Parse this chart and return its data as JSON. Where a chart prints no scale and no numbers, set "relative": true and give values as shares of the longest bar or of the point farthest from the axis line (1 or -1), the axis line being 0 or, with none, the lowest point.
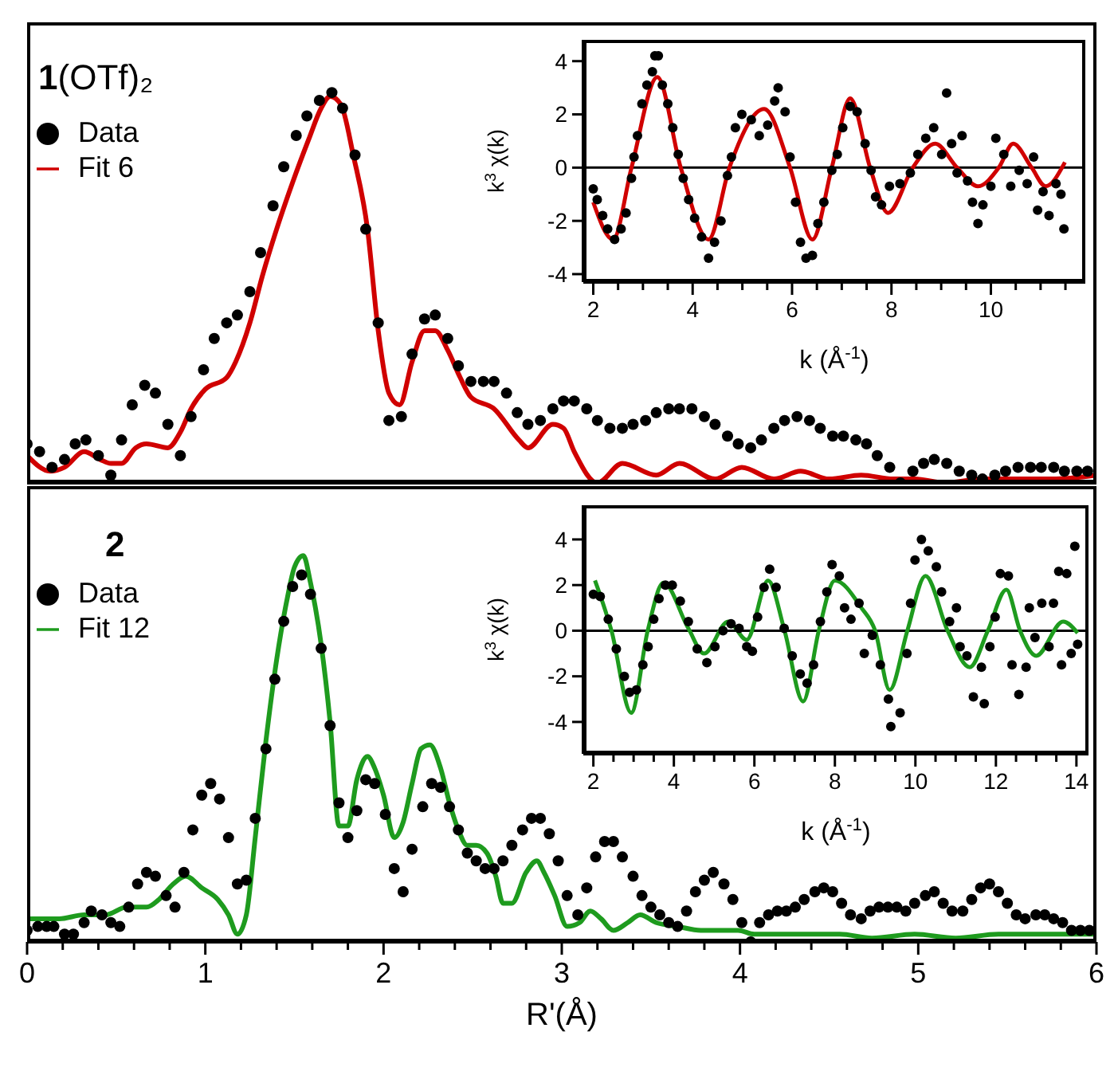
{
  "chart_data": [
    {
      "type": "line",
      "title": "1(OTf)₂",
      "relative": true,
      "xlim": [
        0,
        6
      ],
      "legend": "top left",
      "series": [
        {
          "name": "Data",
          "type": "scatter",
          "marker": "circle",
          "color": "#000000",
          "x": [
            0.0,
            0.07,
            0.14,
            0.21,
            0.27,
            0.33,
            0.4,
            0.47,
            0.53,
            0.59,
            0.66,
            0.72,
            0.79,
            0.86,
            0.92,
            0.99,
            1.05,
            1.12,
            1.18,
            1.25,
            1.31,
            1.38,
            1.44,
            1.51,
            1.57,
            1.64,
            1.71,
            1.77,
            1.84,
            1.9,
            1.97,
            2.03,
            2.1,
            2.16,
            2.23,
            2.29,
            2.36,
            2.42,
            2.49,
            2.56,
            2.62,
            2.69,
            2.75,
            2.81,
            2.88,
            2.95,
            3.01,
            3.07,
            3.14,
            3.2,
            3.27,
            3.34,
            3.4,
            3.47,
            3.53,
            3.6,
            3.66,
            3.73,
            3.8,
            3.86,
            3.93,
            3.99,
            4.06,
            4.12,
            4.19,
            4.25,
            4.32,
            4.39,
            4.45,
            4.52,
            4.58,
            4.65,
            4.71,
            4.77,
            4.84,
            4.9,
            4.97,
            5.03,
            5.09,
            5.16,
            5.23,
            5.3,
            5.36,
            5.43,
            5.49,
            5.56,
            5.63,
            5.69,
            5.76,
            5.82,
            5.89,
            5.95
          ],
          "values": [
            0.1,
            0.08,
            0.04,
            0.06,
            0.1,
            0.11,
            0.07,
            0.02,
            0.11,
            0.2,
            0.25,
            0.23,
            0.15,
            0.07,
            0.17,
            0.29,
            0.37,
            0.41,
            0.43,
            0.49,
            0.59,
            0.71,
            0.81,
            0.89,
            0.94,
            0.98,
            1.0,
            0.96,
            0.84,
            0.65,
            0.41,
            0.16,
            0.17,
            0.33,
            0.42,
            0.43,
            0.37,
            0.3,
            0.26,
            0.26,
            0.26,
            0.23,
            0.18,
            0.15,
            0.16,
            0.19,
            0.21,
            0.21,
            0.19,
            0.16,
            0.14,
            0.14,
            0.15,
            0.16,
            0.18,
            0.19,
            0.19,
            0.19,
            0.17,
            0.15,
            0.12,
            0.1,
            0.09,
            0.11,
            0.14,
            0.16,
            0.17,
            0.16,
            0.14,
            0.12,
            0.12,
            0.11,
            0.1,
            0.07,
            0.04,
            0.0,
            0.03,
            0.05,
            0.06,
            0.05,
            0.03,
            0.02,
            0.01,
            0.02,
            0.03,
            0.04,
            0.04,
            0.04,
            0.04,
            0.03,
            0.03,
            0.03
          ]
        },
        {
          "name": "Fit 6",
          "type": "line",
          "color": "#d00000",
          "x": [
            0.0,
            0.13,
            0.21,
            0.32,
            0.41,
            0.47,
            0.53,
            0.61,
            0.67,
            0.79,
            0.86,
            0.92,
            1.0,
            1.12,
            1.17,
            1.25,
            1.32,
            1.4,
            1.49,
            1.58,
            1.65,
            1.7,
            1.76,
            1.83,
            1.91,
            1.97,
            2.03,
            2.09,
            2.16,
            2.23,
            2.29,
            2.36,
            2.43,
            2.49,
            2.62,
            2.76,
            2.81,
            2.95,
            3.01,
            3.07,
            3.2,
            3.34,
            3.53,
            3.66,
            3.86,
            4.01,
            4.19,
            4.34,
            4.5,
            4.68,
            4.86,
            4.98,
            5.15,
            5.36,
            5.57,
            5.75,
            6.0
          ],
          "values": [
            0.07,
            0.03,
            0.04,
            0.08,
            0.06,
            0.05,
            0.05,
            0.09,
            0.1,
            0.09,
            0.13,
            0.19,
            0.24,
            0.27,
            0.31,
            0.41,
            0.53,
            0.65,
            0.77,
            0.88,
            0.96,
            0.99,
            0.97,
            0.84,
            0.65,
            0.39,
            0.23,
            0.2,
            0.31,
            0.39,
            0.39,
            0.34,
            0.27,
            0.22,
            0.19,
            0.11,
            0.09,
            0.15,
            0.14,
            0.08,
            0.0,
            0.05,
            0.02,
            0.05,
            0.01,
            0.04,
            0.01,
            0.03,
            0.01,
            0.02,
            0.01,
            0.01,
            0.0,
            0.01,
            0.01,
            0.01,
            0.02
          ]
        }
      ]
    },
    {
      "type": "line",
      "xlabel": "k (Å$^{-1}$)",
      "ylabel": "k$^{3}$ χ(k)",
      "xlim": [
        1.8,
        11.9
      ],
      "ylim": [
        -4.3,
        4.8
      ],
      "xticks": [
        2,
        {
          "value": 2.5,
          "label": null
        },
        {
          "value": 3,
          "label": null
        },
        {
          "value": 3.5,
          "label": null
        },
        4,
        {
          "value": 4.5,
          "label": null
        },
        {
          "value": 5,
          "label": null
        },
        {
          "value": 5.5,
          "label": null
        },
        6,
        {
          "value": 6.5,
          "label": null
        },
        {
          "value": 7,
          "label": null
        },
        {
          "value": 7.5,
          "label": null
        },
        8,
        {
          "value": 8.5,
          "label": null
        },
        {
          "value": 9,
          "label": null
        },
        {
          "value": 9.5,
          "label": null
        },
        10,
        {
          "value": 10.5,
          "label": null
        },
        {
          "value": 11,
          "label": null
        },
        {
          "value": 11.5,
          "label": null
        }
      ],
      "yticks": [
        -4,
        -2,
        0,
        2,
        4
      ],
      "ref_lines": [
        {
          "axis": "y",
          "value": 0,
          "color": "#000000"
        }
      ],
      "series": [
        {
          "type": "scatter",
          "marker": "circle",
          "color": "#000000",
          "x": [
            2.0,
            2.08,
            2.19,
            2.29,
            2.43,
            2.56,
            2.66,
            2.77,
            2.82,
            2.89,
            2.98,
            3.08,
            3.19,
            3.24,
            3.31,
            3.39,
            3.5,
            3.6,
            3.71,
            3.81,
            3.92,
            4.04,
            4.18,
            4.32,
            4.44,
            4.57,
            4.7,
            4.78,
            4.86,
            4.99,
            5.18,
            5.34,
            5.51,
            5.65,
            5.72,
            5.86,
            5.96,
            6.07,
            6.17,
            6.28,
            6.41,
            6.52,
            6.64,
            6.8,
            6.91,
            7.02,
            7.17,
            7.31,
            7.47,
            7.59,
            7.68,
            7.8,
            7.96,
            8.17,
            8.38,
            8.53,
            8.69,
            8.85,
            9.01,
            9.11,
            9.21,
            9.32,
            9.42,
            9.53,
            9.63,
            9.74,
            9.84,
            10.0,
            10.1,
            10.26,
            10.4,
            10.57,
            10.73,
            10.86,
            10.94,
            11.05,
            11.17,
            11.31,
            11.41,
            11.47
          ],
          "values": [
            -0.8,
            -1.2,
            -1.8,
            -2.3,
            -2.7,
            -2.3,
            -1.7,
            -0.4,
            0.4,
            1.2,
            2.4,
            3.1,
            3.6,
            4.2,
            4.2,
            3.1,
            2.4,
            1.5,
            0.5,
            -0.4,
            -1.2,
            -1.9,
            -2.6,
            -3.4,
            -2.8,
            -2.0,
            -0.3,
            0.4,
            1.5,
            2.0,
            1.8,
            1.2,
            1.6,
            2.5,
            3.0,
            2.1,
            0.4,
            -1.3,
            -2.8,
            -3.4,
            -3.3,
            -2.1,
            -1.3,
            -0.1,
            0.5,
            1.5,
            2.3,
            2.1,
            0.9,
            -0.1,
            -1.1,
            -1.4,
            -0.7,
            -0.6,
            -0.2,
            0.5,
            1.1,
            1.5,
            0.5,
            2.8,
            0.9,
            -0.2,
            1.2,
            -0.5,
            -1.3,
            -2.1,
            -1.4,
            -0.7,
            1.1,
            0.5,
            -0.7,
            -0.1,
            -0.6,
            0.4,
            -1.6,
            -0.9,
            -1.8,
            -0.6,
            -1.0,
            -2.3
          ]
        },
        {
          "type": "line",
          "color": "#d00000",
          "x": [
            2.0,
            2.4,
            2.77,
            3.29,
            3.76,
            4.32,
            4.74,
            5.44,
            5.96,
            6.41,
            6.8,
            7.17,
            7.57,
            7.93,
            8.43,
            8.88,
            9.32,
            9.74,
            10.16,
            10.45,
            10.82,
            11.1,
            11.49
          ],
          "values": [
            -1.3,
            -2.7,
            0,
            3.4,
            0,
            -2.7,
            0,
            2.2,
            0,
            -2.7,
            0,
            2.6,
            0,
            -1.7,
            0,
            0.9,
            0,
            -0.7,
            0,
            0.9,
            0,
            -0.7,
            0.2
          ]
        }
      ]
    },
    {
      "type": "line",
      "title": "2",
      "relative": true,
      "xlim": [
        0,
        6
      ],
      "xlabel": "R'(Å)",
      "xticks": [
        0,
        {
          "value": 0.2,
          "label": null
        },
        {
          "value": 0.4,
          "label": null
        },
        {
          "value": 0.6,
          "label": null
        },
        {
          "value": 0.8,
          "label": null
        },
        1,
        {
          "value": 1.2,
          "label": null
        },
        {
          "value": 1.4,
          "label": null
        },
        {
          "value": 1.6,
          "label": null
        },
        {
          "value": 1.8,
          "label": null
        },
        2,
        {
          "value": 2.2,
          "label": null
        },
        {
          "value": 2.4,
          "label": null
        },
        {
          "value": 2.6,
          "label": null
        },
        {
          "value": 2.8,
          "label": null
        },
        3,
        {
          "value": 3.2,
          "label": null
        },
        {
          "value": 3.4,
          "label": null
        },
        {
          "value": 3.6,
          "label": null
        },
        {
          "value": 3.8,
          "label": null
        },
        4,
        {
          "value": 4.2,
          "label": null
        },
        {
          "value": 4.4,
          "label": null
        },
        {
          "value": 4.6,
          "label": null
        },
        {
          "value": 4.8,
          "label": null
        },
        5,
        {
          "value": 5.2,
          "label": null
        },
        {
          "value": 5.4,
          "label": null
        },
        {
          "value": 5.6,
          "label": null
        },
        {
          "value": 5.8,
          "label": null
        },
        6
      ],
      "legend": "top left",
      "series": [
        {
          "name": "Data",
          "type": "scatter",
          "marker": "circle",
          "color": "#000000",
          "x": [
            0.0,
            0.06,
            0.11,
            0.15,
            0.21,
            0.26,
            0.32,
            0.36,
            0.42,
            0.47,
            0.52,
            0.57,
            0.62,
            0.67,
            0.72,
            0.78,
            0.83,
            0.88,
            0.93,
            0.98,
            1.03,
            1.08,
            1.13,
            1.18,
            1.23,
            1.28,
            1.34,
            1.39,
            1.44,
            1.49,
            1.54,
            1.59,
            1.65,
            1.7,
            1.75,
            1.8,
            1.85,
            1.9,
            1.95,
            2.01,
            2.06,
            2.11,
            2.16,
            2.22,
            2.27,
            2.32,
            2.37,
            2.42,
            2.47,
            2.52,
            2.57,
            2.62,
            2.67,
            2.72,
            2.78,
            2.83,
            2.88,
            2.93,
            2.98,
            3.03,
            3.09,
            3.14,
            3.19,
            3.24,
            3.29,
            3.34,
            3.4,
            3.45,
            3.5,
            3.55,
            3.6,
            3.65,
            3.7,
            3.75,
            3.8,
            3.85,
            3.91,
            3.96,
            4.01,
            4.06,
            4.11,
            4.16,
            4.21,
            4.26,
            4.31,
            4.36,
            4.42,
            4.47,
            4.52,
            4.57,
            4.62,
            4.68,
            4.73,
            4.78,
            4.83,
            4.88,
            4.93,
            4.98,
            5.04,
            5.09,
            5.14,
            5.19,
            5.25,
            5.3,
            5.35,
            5.4,
            5.45,
            5.5,
            5.55,
            5.6,
            5.66,
            5.71,
            5.76,
            5.81,
            5.86,
            5.91,
            5.96
          ],
          "values": [
            0.03,
            0.04,
            0.04,
            0.04,
            0.02,
            0.02,
            0.05,
            0.08,
            0.07,
            0.05,
            0.04,
            0.09,
            0.15,
            0.18,
            0.17,
            0.12,
            0.09,
            0.18,
            0.29,
            0.38,
            0.41,
            0.37,
            0.27,
            0.15,
            0.16,
            0.32,
            0.5,
            0.68,
            0.83,
            0.92,
            0.95,
            0.9,
            0.76,
            0.56,
            0.36,
            0.27,
            0.34,
            0.42,
            0.41,
            0.33,
            0.19,
            0.13,
            0.24,
            0.35,
            0.41,
            0.4,
            0.35,
            0.29,
            0.23,
            0.21,
            0.19,
            0.19,
            0.21,
            0.25,
            0.29,
            0.32,
            0.32,
            0.28,
            0.21,
            0.12,
            0.07,
            0.14,
            0.22,
            0.26,
            0.26,
            0.22,
            0.17,
            0.12,
            0.09,
            0.07,
            0.05,
            0.04,
            0.08,
            0.13,
            0.16,
            0.18,
            0.15,
            0.11,
            0.05,
            0.0,
            0.05,
            0.07,
            0.08,
            0.08,
            0.09,
            0.11,
            0.13,
            0.14,
            0.13,
            0.1,
            0.07,
            0.06,
            0.08,
            0.09,
            0.09,
            0.09,
            0.08,
            0.1,
            0.12,
            0.13,
            0.1,
            0.08,
            0.08,
            0.11,
            0.14,
            0.15,
            0.13,
            0.1,
            0.07,
            0.06,
            0.07,
            0.07,
            0.06,
            0.05,
            0.03,
            0.03,
            0.03
          ]
        },
        {
          "name": "Fit 12",
          "type": "line",
          "color": "#1e9b1e",
          "x": [
            0.0,
            0.18,
            0.32,
            0.44,
            0.56,
            0.67,
            0.74,
            0.82,
            0.89,
            0.98,
            1.07,
            1.13,
            1.18,
            1.23,
            1.28,
            1.34,
            1.4,
            1.46,
            1.5,
            1.55,
            1.59,
            1.65,
            1.7,
            1.75,
            1.8,
            1.85,
            1.91,
            1.95,
            2.0,
            2.06,
            2.11,
            2.16,
            2.21,
            2.26,
            2.32,
            2.37,
            2.42,
            2.47,
            2.52,
            2.58,
            2.63,
            2.67,
            2.72,
            2.8,
            2.86,
            2.9,
            2.96,
            3.03,
            3.1,
            3.16,
            3.22,
            3.29,
            3.37,
            3.44,
            3.53,
            3.65,
            3.78,
            3.87,
            3.99,
            4.08,
            4.23,
            4.38,
            4.56,
            4.74,
            4.98,
            5.21,
            5.45,
            5.69,
            5.87,
            6.0
          ],
          "values": [
            0.06,
            0.06,
            0.07,
            0.07,
            0.09,
            0.09,
            0.11,
            0.15,
            0.17,
            0.14,
            0.11,
            0.07,
            0.02,
            0.07,
            0.27,
            0.52,
            0.73,
            0.89,
            0.97,
            1.0,
            0.93,
            0.77,
            0.57,
            0.3,
            0.3,
            0.42,
            0.48,
            0.45,
            0.38,
            0.27,
            0.31,
            0.41,
            0.5,
            0.51,
            0.45,
            0.36,
            0.29,
            0.25,
            0.25,
            0.23,
            0.17,
            0.1,
            0.1,
            0.18,
            0.21,
            0.18,
            0.12,
            0.04,
            0.05,
            0.08,
            0.06,
            0.03,
            0.05,
            0.07,
            0.05,
            0.04,
            0.03,
            0.03,
            0.03,
            0.02,
            0.02,
            0.02,
            0.02,
            0.01,
            0.02,
            0.01,
            0.02,
            0.02,
            0.02,
            0.02
          ]
        }
      ]
    },
    {
      "type": "line",
      "xlabel": "k (Å$^{-1}$)",
      "ylabel": "k$^{3}$ χ(k)",
      "xlim": [
        1.75,
        14.3
      ],
      "ylim": [
        -5.4,
        5.5
      ],
      "xticks": [
        2,
        {
          "value": 2.5,
          "label": null
        },
        {
          "value": 3,
          "label": null
        },
        {
          "value": 3.5,
          "label": null
        },
        4,
        {
          "value": 4.5,
          "label": null
        },
        {
          "value": 5,
          "label": null
        },
        {
          "value": 5.5,
          "label": null
        },
        6,
        {
          "value": 6.5,
          "label": null
        },
        {
          "value": 7,
          "label": null
        },
        {
          "value": 7.5,
          "label": null
        },
        8,
        {
          "value": 8.5,
          "label": null
        },
        {
          "value": 9,
          "label": null
        },
        {
          "value": 9.5,
          "label": null
        },
        10,
        {
          "value": 10.5,
          "label": null
        },
        {
          "value": 11,
          "label": null
        },
        {
          "value": 11.5,
          "label": null
        },
        12,
        {
          "value": 12.5,
          "label": null
        },
        {
          "value": 13,
          "label": null
        },
        {
          "value": 13.5,
          "label": null
        },
        14
      ],
      "yticks": [
        -4,
        -2,
        0,
        2,
        4
      ],
      "ref_lines": [
        {
          "axis": "y",
          "value": 0,
          "color": "#000000"
        }
      ],
      "series": [
        {
          "type": "scatter",
          "marker": "circle",
          "color": "#000000",
          "x": [
            2.0,
            2.17,
            2.37,
            2.57,
            2.77,
            2.9,
            3.07,
            3.23,
            3.36,
            3.5,
            3.63,
            3.79,
            3.96,
            4.16,
            4.36,
            4.58,
            4.82,
            5.02,
            5.22,
            5.42,
            5.62,
            5.81,
            5.95,
            6.08,
            6.24,
            6.38,
            6.54,
            6.74,
            6.94,
            7.14,
            7.31,
            7.47,
            7.64,
            7.8,
            7.93,
            8.11,
            8.24,
            8.4,
            8.6,
            8.73,
            8.93,
            9.13,
            9.33,
            9.39,
            9.62,
            9.79,
            9.88,
            9.99,
            10.15,
            10.32,
            10.52,
            10.65,
            10.85,
            11.02,
            11.11,
            11.28,
            11.44,
            11.64,
            11.71,
            11.85,
            11.98,
            12.11,
            12.31,
            12.4,
            12.57,
            12.75,
            12.83,
            12.97,
            13.14,
            13.32,
            13.43,
            13.56,
            13.63,
            13.76,
            13.87,
            13.96,
            14.03
          ],
          "values": [
            1.6,
            1.5,
            0.5,
            -0.8,
            -2.0,
            -2.7,
            -2.6,
            -1.5,
            -0.7,
            0.5,
            1.4,
            2.0,
            2.0,
            1.3,
            0.4,
            -0.8,
            -1.4,
            -0.7,
            0.0,
            0.3,
            0.1,
            -0.7,
            -0.9,
            0.6,
            1.9,
            2.7,
            1.9,
            0.1,
            -1.1,
            -1.9,
            -2.3,
            -1.5,
            0.4,
            1.7,
            2.9,
            2.4,
            1.0,
            0.5,
            1.2,
            -1.0,
            -0.2,
            -1.5,
            -3.0,
            -4.2,
            -3.6,
            -1.0,
            1.2,
            3.1,
            4.0,
            3.5,
            2.8,
            1.7,
            0.4,
            1.0,
            -0.7,
            -1.1,
            -2.9,
            -1.6,
            -3.2,
            -0.7,
            0.6,
            2.5,
            2.4,
            -1.5,
            -2.8,
            -1.6,
            1.0,
            -0.3,
            1.2,
            -0.7,
            1.2,
            2.6,
            -1.5,
            2.5,
            -1.0,
            3.7,
            -0.6
          ]
        },
        {
          "type": "line",
          "color": "#1e9b1e",
          "x": [
            2.04,
            2.45,
            2.94,
            3.35,
            3.74,
            4.36,
            4.75,
            5.35,
            5.81,
            6.34,
            6.75,
            7.21,
            7.6,
            8.0,
            8.66,
            9.0,
            9.36,
            9.8,
            10.25,
            10.8,
            11.35,
            11.8,
            12.26,
            12.6,
            13.0,
            13.67,
            14.03
          ],
          "values": [
            2.2,
            0,
            -3.6,
            0,
            2.1,
            0.1,
            -1.0,
            0.4,
            -0.4,
            2.2,
            0,
            -3.1,
            0,
            2.2,
            1.0,
            0,
            -2.6,
            0,
            2.4,
            0,
            -1.6,
            0,
            1.8,
            0,
            -1.1,
            0.4,
            -0.1
          ]
        }
      ]
    }
  ]
}
